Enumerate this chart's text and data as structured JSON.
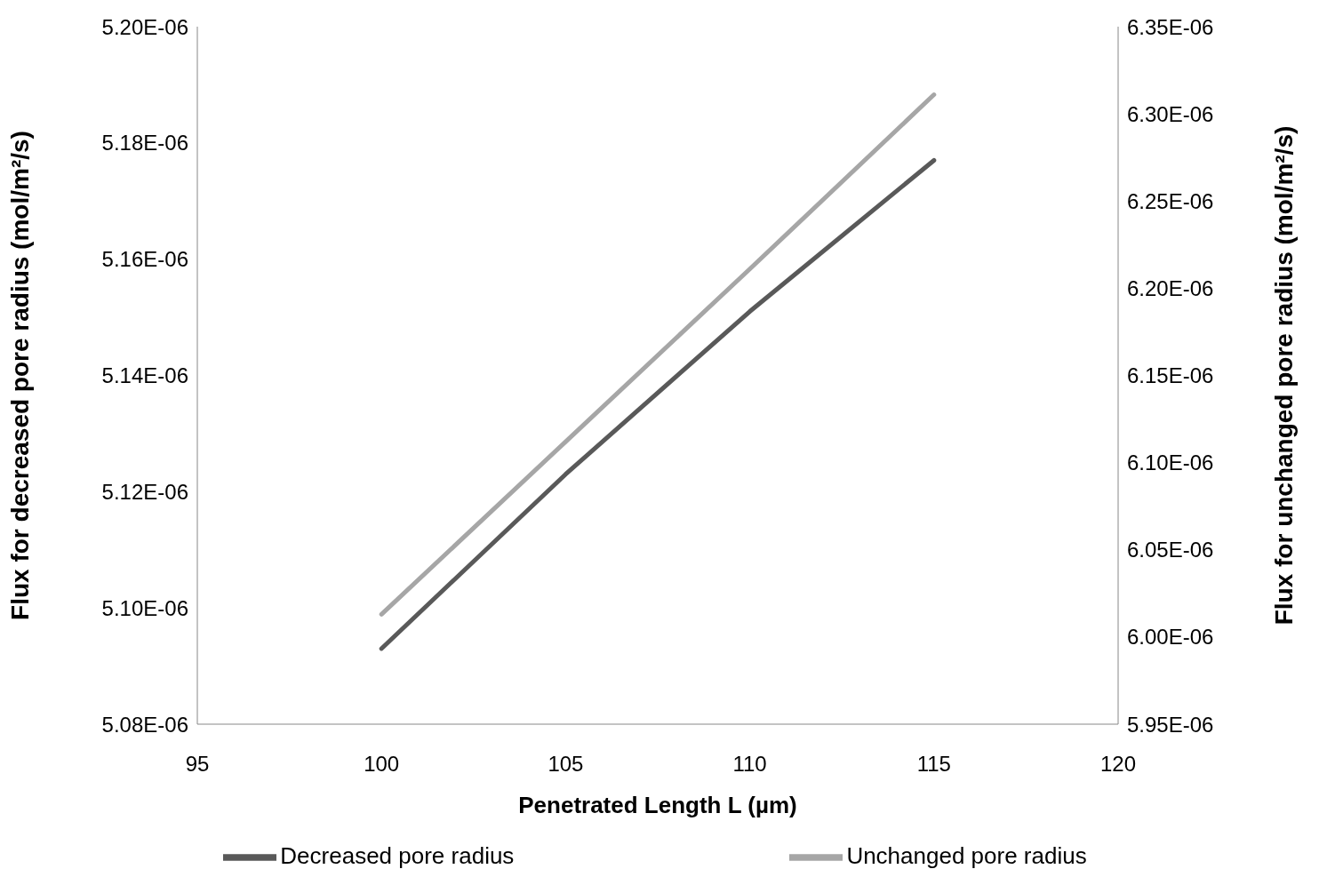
{
  "chart_data": {
    "type": "line",
    "xlabel": "Penetrated Length L (µm)",
    "ylabel": "Flux for decreased pore radius (mol/m²/s)",
    "y2label": "Flux for unchanged pore radius (mol/m²/s)",
    "x": [
      100,
      105,
      110,
      115
    ],
    "series": [
      {
        "name": "Decreased pore radius",
        "color": "#595959",
        "values": [
          5.093e-06,
          5.123e-06,
          5.151e-06,
          5.177e-06
        ]
      },
      {
        "name": "Unchanged pore radius",
        "color": "#a6a6a6",
        "axis": "y2",
        "values": [
          6.013e-06,
          6.112e-06,
          6.211e-06,
          6.311e-06
        ]
      }
    ],
    "xlim": [
      95,
      120
    ],
    "xticks": [
      95,
      100,
      105,
      110,
      115,
      120
    ],
    "ylim": [
      5.08e-06,
      5.2e-06
    ],
    "yticks": [
      {
        "value": 5.08e-06,
        "label": "5.08E-06"
      },
      {
        "value": 5.1e-06,
        "label": "5.10E-06"
      },
      {
        "value": 5.12e-06,
        "label": "5.12E-06"
      },
      {
        "value": 5.14e-06,
        "label": "5.14E-06"
      },
      {
        "value": 5.16e-06,
        "label": "5.16E-06"
      },
      {
        "value": 5.18e-06,
        "label": "5.18E-06"
      },
      {
        "value": 5.2e-06,
        "label": "5.20E-06"
      }
    ],
    "y2lim": [
      5.95e-06,
      6.35e-06
    ],
    "y2ticks": [
      {
        "value": 5.95e-06,
        "label": "5.95E-06"
      },
      {
        "value": 6e-06,
        "label": "6.00E-06"
      },
      {
        "value": 6.05e-06,
        "label": "6.05E-06"
      },
      {
        "value": 6.1e-06,
        "label": "6.10E-06"
      },
      {
        "value": 6.15e-06,
        "label": "6.15E-06"
      },
      {
        "value": 6.2e-06,
        "label": "6.20E-06"
      },
      {
        "value": 6.25e-06,
        "label": "6.25E-06"
      },
      {
        "value": 6.3e-06,
        "label": "6.30E-06"
      },
      {
        "value": 6.35e-06,
        "label": "6.35E-06"
      }
    ],
    "grid": false,
    "legend": "bottom",
    "marker": "none",
    "line_style": "solid"
  }
}
